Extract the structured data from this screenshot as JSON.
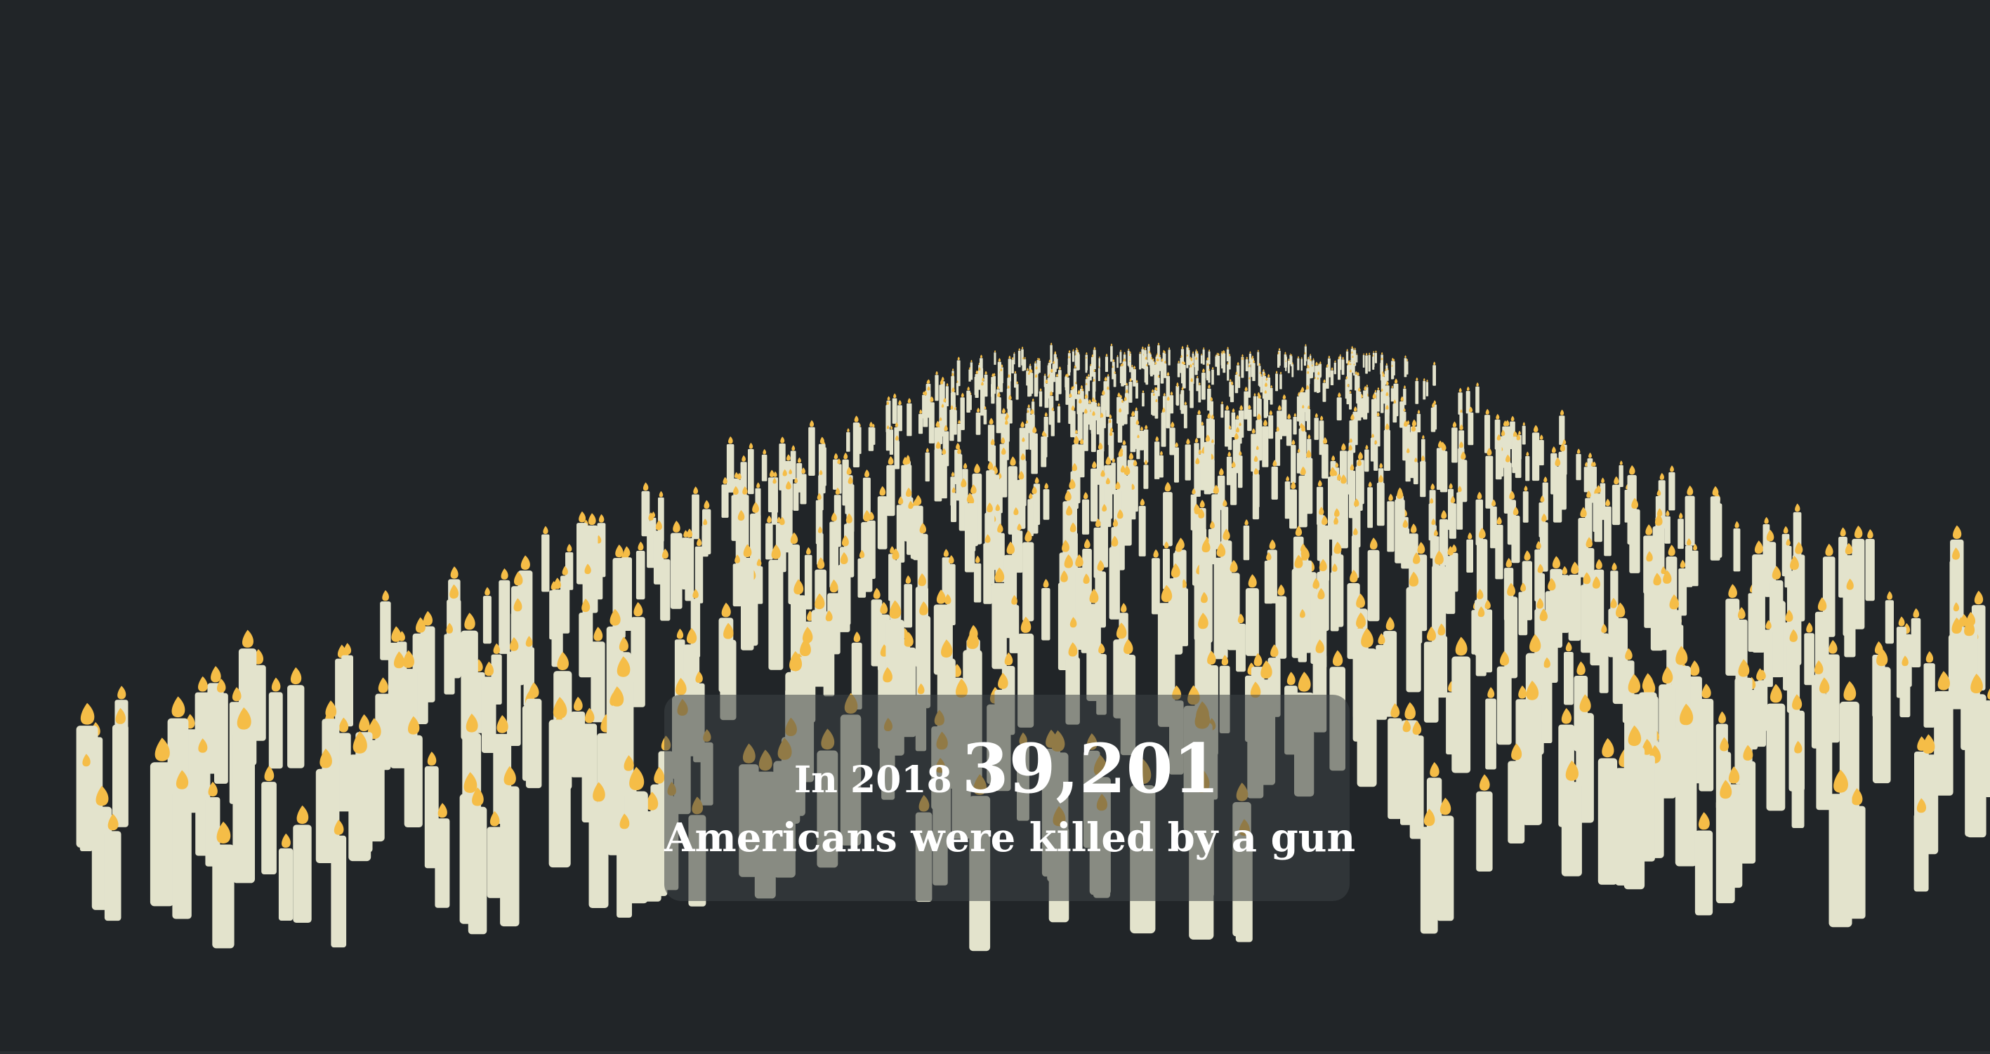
{
  "colors": {
    "background": "#212528",
    "candle_body": "#e3e3cc",
    "flame": "#f5bd47",
    "caption_box": "rgba(62,68,70,0.55)",
    "caption_text": "#ffffff"
  },
  "caption": {
    "prefix": "In 2018",
    "count": "39,201",
    "subtitle": "Americans were killed by a gun"
  }
}
